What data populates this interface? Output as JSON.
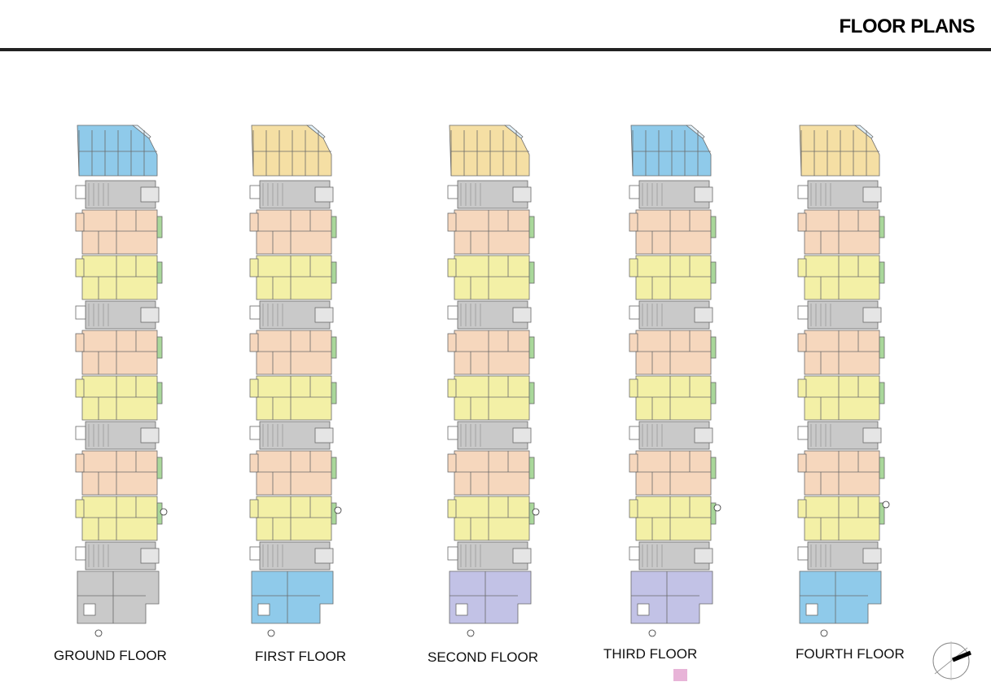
{
  "header": {
    "title": "FLOOR PLANS"
  },
  "floors": [
    {
      "label": "GROUND FLOOR",
      "top": "blue",
      "bottom": "grey"
    },
    {
      "label": "FIRST FLOOR",
      "top": "beige",
      "bottom": "blue"
    },
    {
      "label": "SECOND FLOOR",
      "top": "beige",
      "bottom": "purple"
    },
    {
      "label": "THIRD FLOOR",
      "top": "blue",
      "bottom": "purple"
    },
    {
      "label": "FOURTH FLOOR",
      "top": "beige",
      "bottom": "blue"
    }
  ],
  "colors": {
    "unit_peach": "#f6d7bd",
    "unit_yellow": "#f3f0a6",
    "unit_blue": "#8fcaea",
    "unit_beige": "#f5dfa4",
    "unit_purple": "#c2c2e6",
    "core_grey": "#c9c9c9",
    "balcony_green": "#a9d79a",
    "legend_pink": "#e8b4d8"
  },
  "icons": {
    "section_marker": "section-marker-icon",
    "north_arrow": "north-arrow-icon"
  }
}
